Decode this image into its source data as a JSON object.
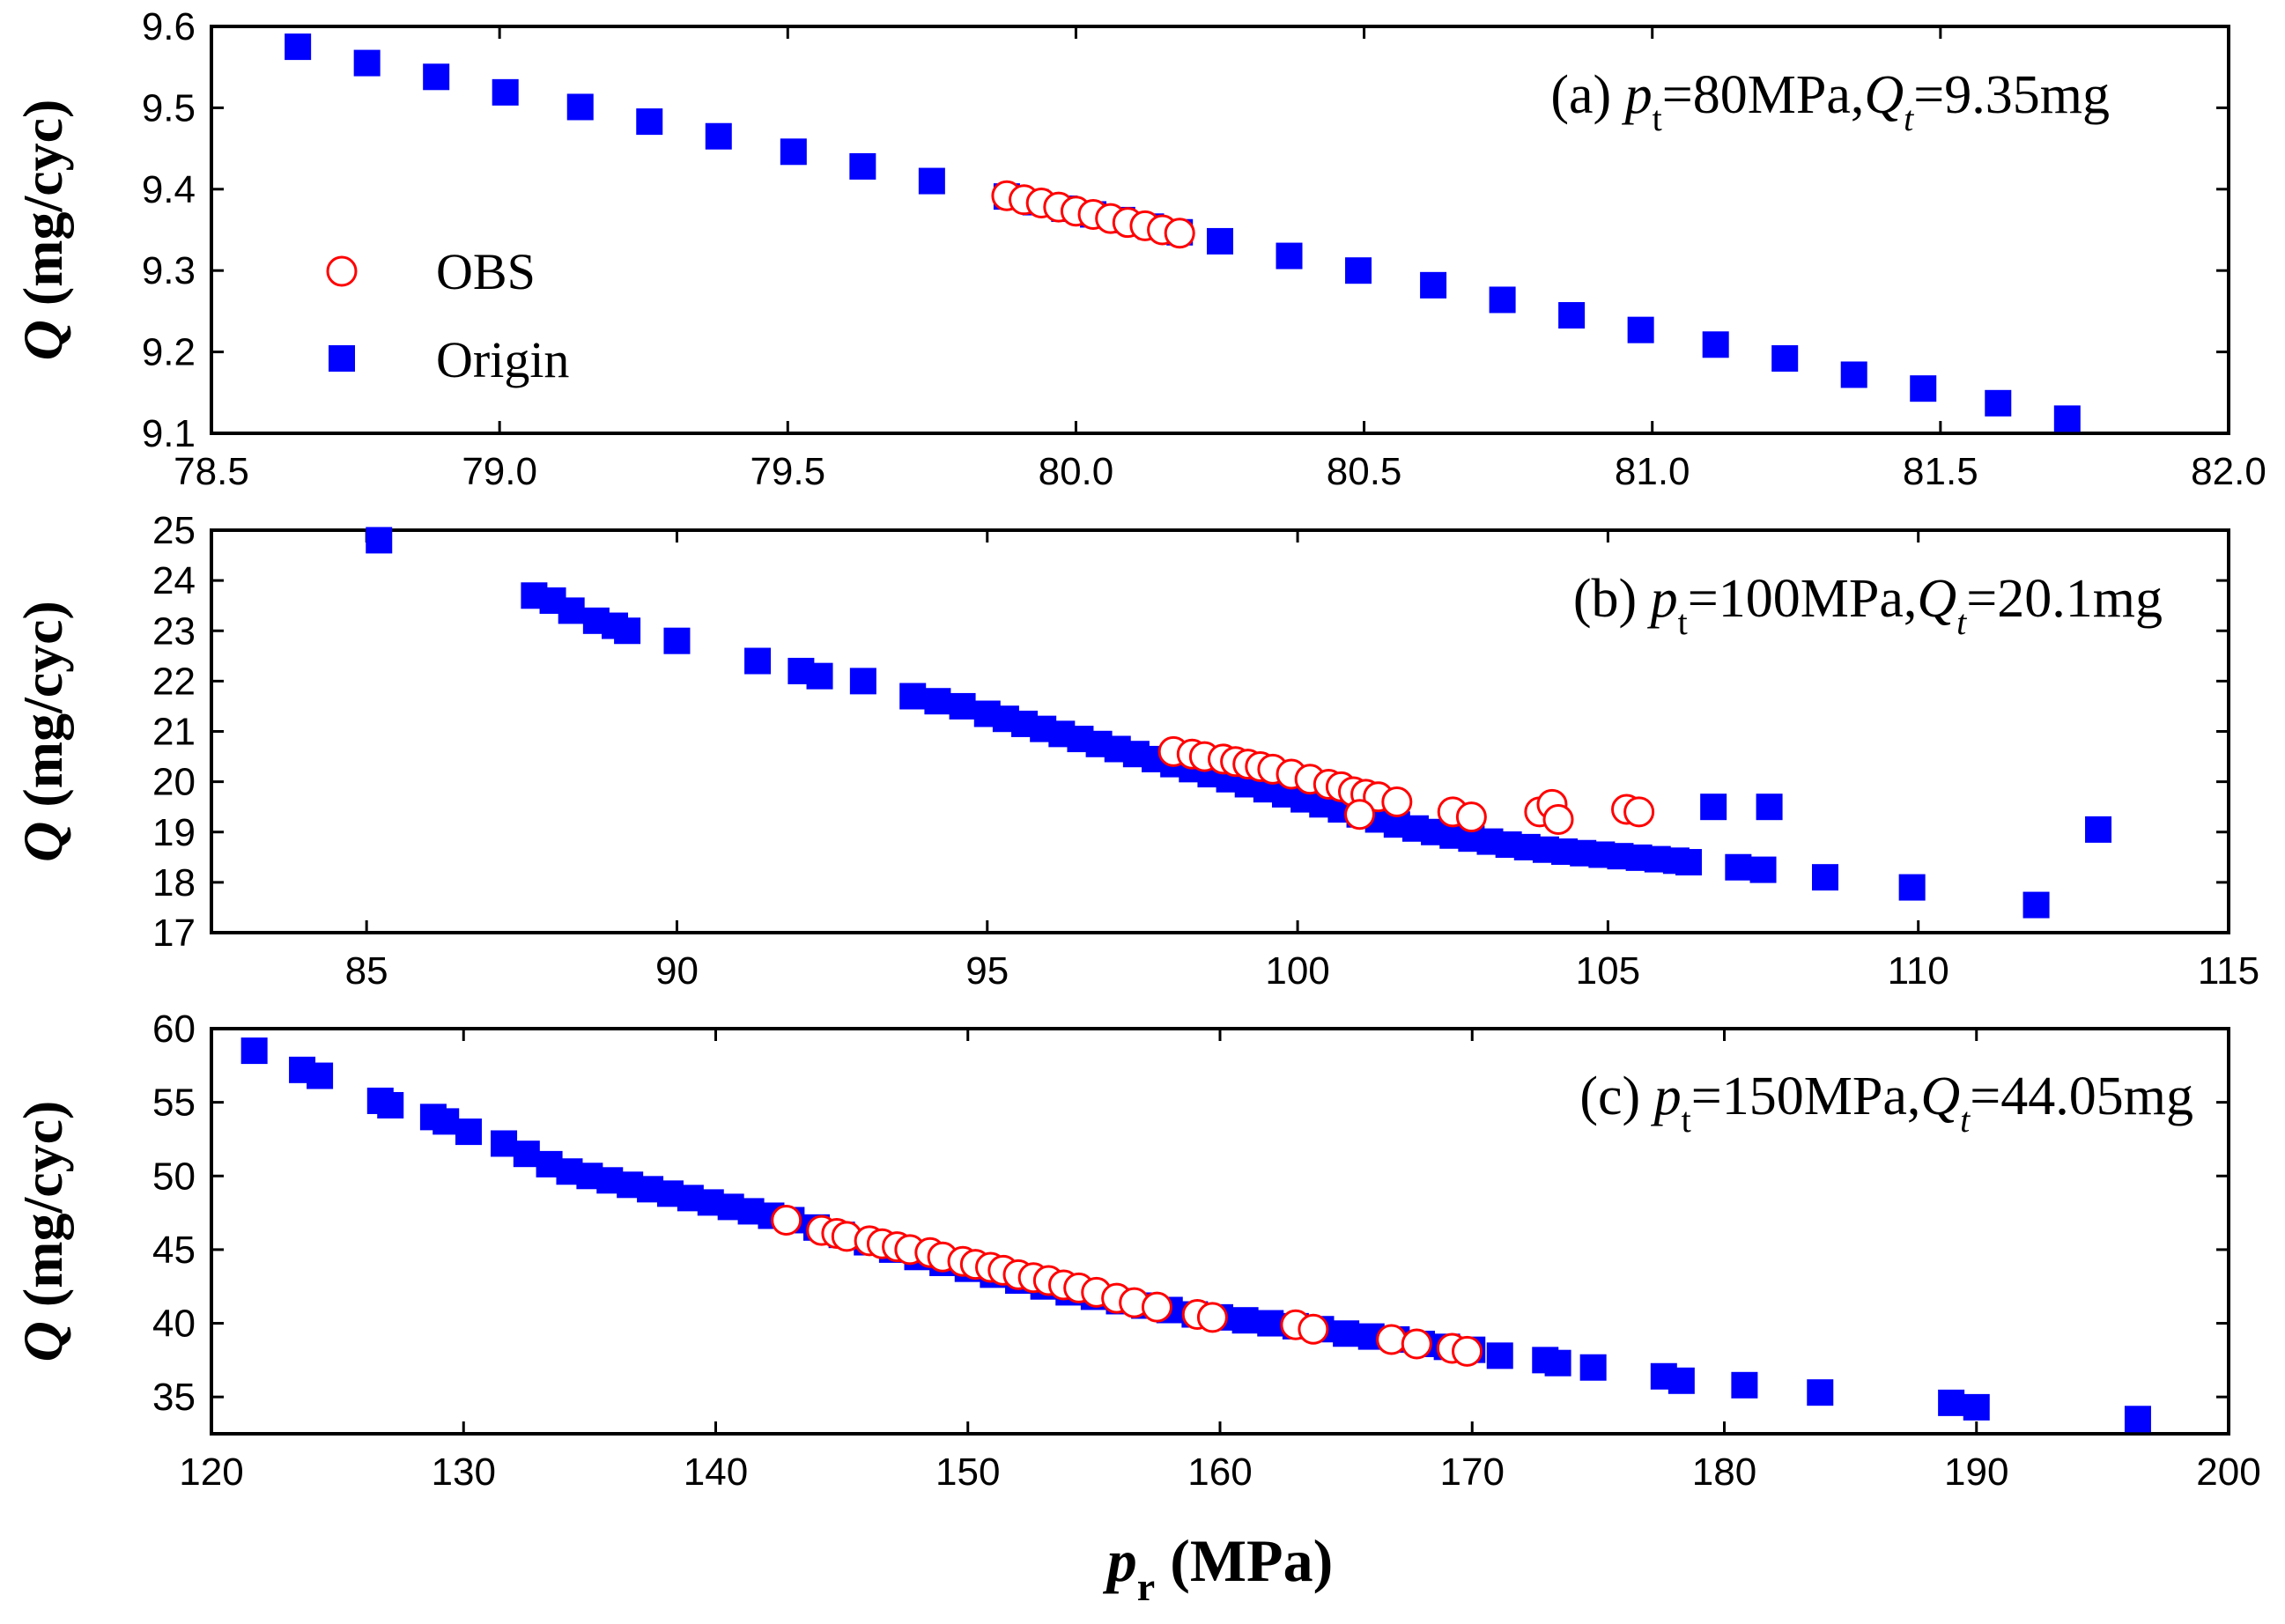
{
  "chart_data": [
    {
      "type": "scatter",
      "panel": "a",
      "annotation": {
        "prefix": "(a) ",
        "p_sym": "p",
        "p_sub": "t",
        "p_val": "=80MPa,",
        "q_sym": "Q",
        "q_sub": "t",
        "q_val": "=9.35mg"
      },
      "ylabel": {
        "sym": "Q",
        "rest": " (mg/cyc)"
      },
      "xlim": [
        78.5,
        82.0
      ],
      "ylim": [
        9.1,
        9.6
      ],
      "xticks": [
        78.5,
        79.0,
        79.5,
        80.0,
        80.5,
        81.0,
        81.5,
        82.0
      ],
      "yticks": [
        9.1,
        9.2,
        9.3,
        9.4,
        9.5,
        9.6
      ],
      "xtick_labels": [
        "78.5",
        "79.0",
        "79.5",
        "80.0",
        "80.5",
        "81.0",
        "81.5",
        "82.0"
      ],
      "ytick_labels": [
        "9.1",
        "9.2",
        "9.3",
        "9.4",
        "9.5",
        "9.6"
      ],
      "legend": {
        "placement": "left",
        "entries": [
          "OBS",
          "Origin"
        ]
      },
      "series": [
        {
          "name": "Origin",
          "marker": "square",
          "color": "#0000ff",
          "x": [
            78.65,
            78.77,
            78.89,
            79.01,
            79.14,
            79.26,
            79.38,
            79.51,
            79.63,
            79.75,
            79.88,
            79.93,
            79.98,
            80.03,
            80.08,
            80.13,
            80.18,
            80.25,
            80.37,
            80.49,
            80.62,
            80.74,
            80.86,
            80.98,
            81.11,
            81.23,
            81.35,
            81.47,
            81.6,
            81.72
          ],
          "y": [
            9.575,
            9.555,
            9.538,
            9.519,
            9.501,
            9.483,
            9.465,
            9.446,
            9.428,
            9.41,
            9.391,
            9.384,
            9.376,
            9.369,
            9.362,
            9.354,
            9.347,
            9.336,
            9.318,
            9.3,
            9.282,
            9.264,
            9.245,
            9.227,
            9.209,
            9.192,
            9.172,
            9.155,
            9.137,
            9.118
          ]
        },
        {
          "name": "OBS",
          "marker": "circle",
          "color": "#ff0000",
          "x": [
            79.88,
            79.91,
            79.94,
            79.97,
            80.0,
            80.03,
            80.06,
            80.09,
            80.12,
            80.15,
            80.18
          ],
          "y": [
            9.392,
            9.387,
            9.383,
            9.378,
            9.373,
            9.369,
            9.364,
            9.359,
            9.355,
            9.35,
            9.346
          ]
        }
      ]
    },
    {
      "type": "scatter",
      "panel": "b",
      "annotation": {
        "prefix": "(b) ",
        "p_sym": "p",
        "p_sub": "t",
        "p_val": "=100MPa,",
        "q_sym": "Q",
        "q_sub": "t",
        "q_val": "=20.1mg"
      },
      "ylabel": {
        "sym": "Q",
        "rest": " (mg/cyc)"
      },
      "xlim": [
        82.5,
        115
      ],
      "ylim": [
        17,
        25
      ],
      "xticks": [
        85,
        90,
        95,
        100,
        105,
        110,
        115
      ],
      "yticks": [
        17,
        18,
        19,
        20,
        21,
        22,
        23,
        24,
        25
      ],
      "xtick_labels": [
        "85",
        "90",
        "95",
        "100",
        "105",
        "110",
        "115"
      ],
      "ytick_labels": [
        "17",
        "18",
        "19",
        "20",
        "21",
        "22",
        "23",
        "24",
        "25"
      ],
      "series": [
        {
          "name": "Origin",
          "marker": "square",
          "color": "#0000ff",
          "x": [
            85.2,
            87.7,
            88.0,
            88.3,
            88.7,
            89.0,
            89.2,
            90.0,
            91.3,
            92.0,
            92.3,
            93.0,
            93.8,
            94.2,
            94.6,
            95.0,
            95.3,
            95.6,
            95.9,
            96.2,
            96.5,
            96.8,
            97.1,
            97.4,
            97.7,
            98.0,
            98.3,
            98.6,
            98.9,
            99.2,
            99.5,
            99.8,
            100.1,
            100.4,
            100.7,
            101.0,
            101.3,
            101.6,
            101.9,
            102.2,
            102.5,
            102.8,
            103.1,
            103.4,
            103.7,
            104.0,
            104.3,
            104.6,
            104.9,
            105.2,
            105.5,
            105.8,
            106.1,
            106.3,
            106.7,
            107.1,
            107.5,
            107.6,
            108.5,
            109.9,
            111.9,
            112.9
          ],
          "y": [
            24.8,
            23.7,
            23.6,
            23.4,
            23.2,
            23.1,
            23.0,
            22.8,
            22.4,
            22.2,
            22.1,
            22.0,
            21.7,
            21.6,
            21.5,
            21.35,
            21.25,
            21.15,
            21.05,
            20.95,
            20.85,
            20.75,
            20.65,
            20.55,
            20.45,
            20.35,
            20.25,
            20.15,
            20.05,
            19.95,
            19.85,
            19.75,
            19.65,
            19.55,
            19.45,
            19.35,
            19.25,
            19.15,
            19.07,
            19.0,
            18.93,
            18.87,
            18.81,
            18.75,
            18.7,
            18.65,
            18.61,
            18.58,
            18.55,
            18.52,
            18.49,
            18.46,
            18.43,
            18.4,
            19.5,
            18.3,
            18.25,
            19.5,
            18.1,
            17.9,
            17.55,
            19.05
          ]
        },
        {
          "name": "OBS",
          "marker": "circle",
          "color": "#ff0000",
          "x": [
            98.0,
            98.3,
            98.5,
            98.8,
            99.0,
            99.2,
            99.4,
            99.6,
            99.9,
            100.2,
            100.5,
            100.7,
            100.9,
            101.1,
            101.3,
            101.6,
            101.0,
            102.5,
            102.8,
            103.9,
            104.1,
            104.2,
            105.3,
            105.5
          ],
          "y": [
            20.6,
            20.55,
            20.5,
            20.45,
            20.4,
            20.35,
            20.3,
            20.25,
            20.15,
            20.05,
            19.95,
            19.9,
            19.8,
            19.75,
            19.7,
            19.6,
            19.35,
            19.4,
            19.3,
            19.4,
            19.55,
            19.25,
            19.45,
            19.4
          ]
        }
      ]
    },
    {
      "type": "scatter",
      "panel": "c",
      "annotation": {
        "prefix": "(c) ",
        "p_sym": "p",
        "p_sub": "t",
        "p_val": "=150MPa,",
        "q_sym": "Q",
        "q_sub": "t",
        "q_val": "=44.05mg"
      },
      "ylabel": {
        "sym": "Q",
        "rest": " (mg/cyc)"
      },
      "xlabel": {
        "sym": "p",
        "sub": "r",
        "rest": " (MPa)"
      },
      "xlim": [
        120,
        200
      ],
      "ylim": [
        32.5,
        60
      ],
      "xticks": [
        120,
        130,
        140,
        150,
        160,
        170,
        180,
        190,
        200
      ],
      "yticks": [
        35,
        40,
        45,
        50,
        55,
        60
      ],
      "xtick_labels": [
        "120",
        "130",
        "140",
        "150",
        "160",
        "170",
        "180",
        "190",
        "200"
      ],
      "ytick_labels": [
        "35",
        "40",
        "45",
        "50",
        "55",
        "60"
      ],
      "series": [
        {
          "name": "Origin",
          "marker": "square",
          "color": "#0000ff",
          "x": [
            121.7,
            123.6,
            124.3,
            126.7,
            127.1,
            128.8,
            129.3,
            130.2,
            131.6,
            132.5,
            133.4,
            134.2,
            135.0,
            135.8,
            136.6,
            137.4,
            138.2,
            139.0,
            139.8,
            140.6,
            141.4,
            142.2,
            143.0,
            144.0,
            145.0,
            146.0,
            147.0,
            148.0,
            149.0,
            150.0,
            151.0,
            152.0,
            153.0,
            154.0,
            155.0,
            156.0,
            157.0,
            158.0,
            159.0,
            160.0,
            161.0,
            162.0,
            163.0,
            164.0,
            165.0,
            166.0,
            167.0,
            168.0,
            169.0,
            170.0,
            171.1,
            172.9,
            173.4,
            174.8,
            177.6,
            178.3,
            180.8,
            183.8,
            189.0,
            190.0,
            196.4
          ],
          "y": [
            58.5,
            57.2,
            56.8,
            55.1,
            54.8,
            54.0,
            53.7,
            53.0,
            52.2,
            51.5,
            50.8,
            50.3,
            50.0,
            49.7,
            49.4,
            49.1,
            48.8,
            48.5,
            48.2,
            47.9,
            47.6,
            47.3,
            47.0,
            46.5,
            46.0,
            45.5,
            45.0,
            44.5,
            44.1,
            43.7,
            43.3,
            42.9,
            42.5,
            42.1,
            41.8,
            41.5,
            41.2,
            40.9,
            40.6,
            40.4,
            40.2,
            40.0,
            39.8,
            39.6,
            39.3,
            39.1,
            38.9,
            38.6,
            38.4,
            38.2,
            37.8,
            37.5,
            37.3,
            37.0,
            36.4,
            36.1,
            35.8,
            35.3,
            34.6,
            34.3,
            33.5
          ]
        },
        {
          "name": "OBS",
          "marker": "circle",
          "color": "#ff0000",
          "x": [
            142.8,
            144.2,
            144.8,
            145.2,
            146.1,
            146.6,
            147.2,
            147.7,
            148.5,
            149.0,
            149.8,
            150.3,
            150.9,
            151.4,
            152.0,
            152.6,
            153.2,
            153.8,
            154.4,
            155.1,
            155.9,
            156.6,
            157.5,
            159.1,
            159.7,
            163.0,
            163.7,
            166.8,
            167.8,
            169.2,
            169.8
          ],
          "y": [
            47.0,
            46.3,
            46.1,
            45.9,
            45.6,
            45.4,
            45.2,
            45.0,
            44.8,
            44.5,
            44.2,
            44.0,
            43.8,
            43.6,
            43.3,
            43.1,
            42.9,
            42.6,
            42.4,
            42.1,
            41.7,
            41.4,
            41.1,
            40.6,
            40.4,
            39.9,
            39.6,
            38.9,
            38.6,
            38.3,
            38.1
          ]
        }
      ]
    }
  ]
}
